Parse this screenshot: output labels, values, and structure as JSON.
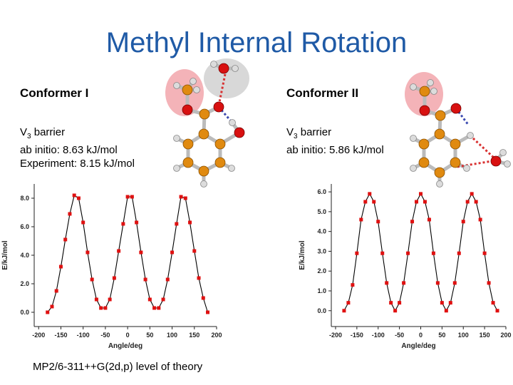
{
  "title": "Methyl Internal Rotation",
  "conformer1": {
    "label": "Conformer I",
    "v3_main": "V",
    "v3_sub": "3",
    "v3_rest": " barrier",
    "ab_initio": "ab initio: 8.63 kJ/mol",
    "experiment": "Experiment: 8.15 kJ/mol"
  },
  "conformer2": {
    "label": "Conformer II",
    "v3_main": "V",
    "v3_sub": "3",
    "v3_rest": " barrier",
    "ab_initio": "ab initio: 5.86 kJ/mol"
  },
  "footer": "MP2/6-311++G(2d,p) level of theory",
  "colors": {
    "title": "#1f5aa6",
    "points": "#e01010",
    "line": "#000000",
    "carbon": "#e08a10",
    "oxygen": "#d81010",
    "hydrogen": "#d8d8d8",
    "methyl_highlight": "#f4b3b8",
    "water_highlight": "#d0d0d0"
  },
  "chart_data": [
    {
      "type": "line",
      "xlabel": "Angle/deg",
      "ylabel": "E/kJ/mol",
      "xlim": [
        -210,
        200
      ],
      "ylim": [
        -1.0,
        9.0
      ],
      "xticks": [
        "-200",
        "-150",
        "-100",
        "-50",
        "0",
        "50",
        "100",
        "150",
        "200"
      ],
      "yticks": [
        "0.0",
        "2.0",
        "4.0",
        "6.0",
        "8.0"
      ],
      "x": [
        -180,
        -170,
        -160,
        -150,
        -140,
        -130,
        -120,
        -110,
        -100,
        -90,
        -80,
        -70,
        -60,
        -50,
        -40,
        -30,
        -20,
        -10,
        0,
        10,
        20,
        30,
        40,
        50,
        60,
        70,
        80,
        90,
        100,
        110,
        120,
        130,
        140,
        150,
        160,
        170,
        180
      ],
      "y": [
        0.0,
        0.4,
        1.5,
        3.2,
        5.1,
        6.9,
        8.2,
        8.0,
        6.3,
        4.2,
        2.3,
        0.9,
        0.3,
        0.3,
        0.9,
        2.4,
        4.3,
        6.2,
        8.1,
        8.1,
        6.3,
        4.2,
        2.3,
        0.9,
        0.3,
        0.3,
        0.9,
        2.3,
        4.2,
        6.2,
        8.1,
        8.0,
        6.3,
        4.3,
        2.4,
        1.0,
        0.0
      ]
    },
    {
      "type": "line",
      "xlabel": "Angle/deg",
      "ylabel": "E/kJ/mol",
      "xlim": [
        -210,
        200
      ],
      "ylim": [
        -0.8,
        6.4
      ],
      "xticks": [
        "-200",
        "-150",
        "-100",
        "-50",
        "0",
        "50",
        "100",
        "150",
        "200"
      ],
      "yticks": [
        "0.0",
        "1.0",
        "2.0",
        "3.0",
        "4.0",
        "5.0",
        "6.0"
      ],
      "x": [
        -180,
        -170,
        -160,
        -150,
        -140,
        -130,
        -120,
        -110,
        -100,
        -90,
        -80,
        -70,
        -60,
        -50,
        -40,
        -30,
        -20,
        -10,
        0,
        10,
        20,
        30,
        40,
        50,
        60,
        70,
        80,
        90,
        100,
        110,
        120,
        130,
        140,
        150,
        160,
        170,
        180
      ],
      "y": [
        0.0,
        0.4,
        1.3,
        2.9,
        4.6,
        5.5,
        5.9,
        5.5,
        4.5,
        2.9,
        1.4,
        0.4,
        0.0,
        0.4,
        1.4,
        2.9,
        4.5,
        5.5,
        5.9,
        5.5,
        4.6,
        2.9,
        1.4,
        0.4,
        0.0,
        0.4,
        1.4,
        2.9,
        4.5,
        5.5,
        5.9,
        5.5,
        4.6,
        2.9,
        1.4,
        0.4,
        0.0
      ]
    }
  ]
}
